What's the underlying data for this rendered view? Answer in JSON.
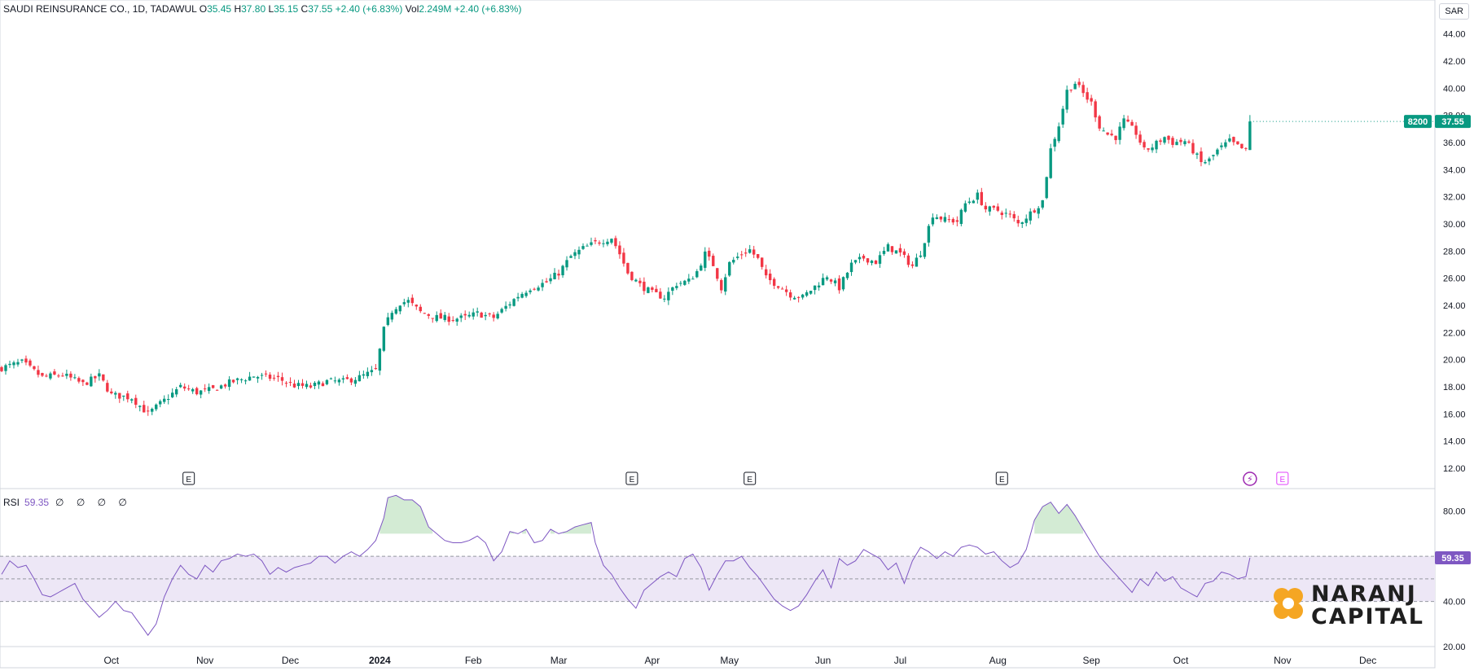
{
  "header": {
    "symbol": "SAUDI REINSURANCE CO., 1D, TADAWUL",
    "open_label": "O",
    "open": "35.45",
    "high_label": "H",
    "high": "37.80",
    "low_label": "L",
    "low": "35.15",
    "close_label": "C",
    "close": "37.55",
    "change": "+2.40 (+6.83%)",
    "vol_label": "Vol",
    "vol": "2.249M",
    "vol_change": "+2.40 (+6.83%)"
  },
  "currency": "SAR",
  "price_tags": {
    "code": "8200",
    "last": "37.55"
  },
  "rsi_legend": {
    "label": "RSI",
    "value": "59.35",
    "extra": "∅ ∅ ∅ ∅"
  },
  "brand": {
    "line1": "NARANJ",
    "line2": "CAPITAL"
  },
  "colors": {
    "up": "#089981",
    "down": "#f23645",
    "rsi": "#7e57c2",
    "band": "#ede7f6",
    "accent": "#f5a623"
  },
  "chart_data": [
    {
      "type": "candlestick",
      "title": "SAUDI REINSURANCE CO., 1D, TADAWUL",
      "ylabel": "SAR",
      "ylim": [
        10.5,
        46.5
      ],
      "yticks": [
        12,
        14,
        16,
        18,
        20,
        22,
        24,
        26,
        28,
        30,
        32,
        34,
        36,
        38,
        40,
        42,
        44
      ],
      "x_labels": [
        {
          "i": 27,
          "label": "Oct"
        },
        {
          "i": 50,
          "label": "Nov"
        },
        {
          "i": 71,
          "label": "Dec"
        },
        {
          "i": 93,
          "label": "2024"
        },
        {
          "i": 116,
          "label": "Feb"
        },
        {
          "i": 137,
          "label": "Mar"
        },
        {
          "i": 160,
          "label": "Apr"
        },
        {
          "i": 179,
          "label": "May"
        },
        {
          "i": 202,
          "label": "Jun"
        },
        {
          "i": 221,
          "label": "Jul"
        },
        {
          "i": 245,
          "label": "Aug"
        },
        {
          "i": 268,
          "label": "Sep"
        },
        {
          "i": 290,
          "label": "Oct"
        },
        {
          "i": 315,
          "label": "Nov"
        },
        {
          "i": 336,
          "label": "Dec"
        }
      ],
      "events": [
        {
          "i": 46,
          "label": "E"
        },
        {
          "i": 155,
          "label": "E"
        },
        {
          "i": 184,
          "label": "E"
        },
        {
          "i": 246,
          "label": "E"
        },
        {
          "i": 307,
          "label": "⚡"
        },
        {
          "i": 315,
          "label": "E"
        }
      ],
      "close_anchors": [
        [
          0,
          19.4
        ],
        [
          5,
          19.8
        ],
        [
          10,
          18.7
        ],
        [
          15,
          18.9
        ],
        [
          20,
          18.2
        ],
        [
          24,
          18.8
        ],
        [
          27,
          17.4
        ],
        [
          32,
          17.2
        ],
        [
          36,
          16.0
        ],
        [
          40,
          17.0
        ],
        [
          44,
          18.0
        ],
        [
          48,
          17.6
        ],
        [
          52,
          17.8
        ],
        [
          56,
          18.3
        ],
        [
          62,
          18.8
        ],
        [
          68,
          18.6
        ],
        [
          72,
          18.1
        ],
        [
          76,
          18.0
        ],
        [
          80,
          18.4
        ],
        [
          84,
          18.4
        ],
        [
          88,
          18.7
        ],
        [
          92,
          19.2
        ],
        [
          94,
          22.2
        ],
        [
          96,
          23.6
        ],
        [
          98,
          24.2
        ],
        [
          100,
          24.3
        ],
        [
          103,
          23.5
        ],
        [
          107,
          23.1
        ],
        [
          111,
          23.0
        ],
        [
          114,
          23.1
        ],
        [
          117,
          23.4
        ],
        [
          121,
          23.1
        ],
        [
          124,
          23.9
        ],
        [
          127,
          24.7
        ],
        [
          130,
          25.3
        ],
        [
          134,
          25.7
        ],
        [
          137,
          26.4
        ],
        [
          140,
          27.6
        ],
        [
          143,
          28.2
        ],
        [
          146,
          28.6
        ],
        [
          150,
          29.0
        ],
        [
          152,
          27.8
        ],
        [
          154,
          26.4
        ],
        [
          157,
          25.5
        ],
        [
          160,
          24.9
        ],
        [
          163,
          24.6
        ],
        [
          166,
          25.6
        ],
        [
          169,
          25.8
        ],
        [
          171,
          26.5
        ],
        [
          173,
          27.8
        ],
        [
          175,
          27.0
        ],
        [
          177,
          25.3
        ],
        [
          179,
          27.1
        ],
        [
          182,
          27.8
        ],
        [
          184,
          28.1
        ],
        [
          186,
          27.4
        ],
        [
          188,
          26.0
        ],
        [
          191,
          25.5
        ],
        [
          194,
          24.8
        ],
        [
          197,
          24.6
        ],
        [
          200,
          25.4
        ],
        [
          203,
          26.2
        ],
        [
          206,
          25.3
        ],
        [
          209,
          27.0
        ],
        [
          212,
          27.5
        ],
        [
          215,
          27.2
        ],
        [
          218,
          28.3
        ],
        [
          221,
          27.8
        ],
        [
          224,
          26.9
        ],
        [
          226,
          27.9
        ],
        [
          229,
          30.7
        ],
        [
          232,
          30.3
        ],
        [
          235,
          30.2
        ],
        [
          237,
          31.5
        ],
        [
          240,
          32.1
        ],
        [
          242,
          31.1
        ],
        [
          245,
          31.0
        ],
        [
          248,
          30.6
        ],
        [
          250,
          30.0
        ],
        [
          253,
          30.8
        ],
        [
          256,
          31.7
        ],
        [
          258,
          35.5
        ],
        [
          260,
          37.3
        ],
        [
          262,
          39.8
        ],
        [
          264,
          40.4
        ],
        [
          266,
          39.6
        ],
        [
          268,
          38.9
        ],
        [
          270,
          37.2
        ],
        [
          272,
          36.6
        ],
        [
          274,
          36.4
        ],
        [
          276,
          37.6
        ],
        [
          279,
          36.7
        ],
        [
          281,
          35.4
        ],
        [
          283,
          35.7
        ],
        [
          286,
          36.4
        ],
        [
          288,
          36.0
        ],
        [
          291,
          36.1
        ],
        [
          293,
          35.4
        ],
        [
          295,
          34.5
        ],
        [
          297,
          34.7
        ],
        [
          299,
          35.4
        ],
        [
          302,
          36.1
        ],
        [
          304,
          35.7
        ],
        [
          306,
          35.4
        ],
        [
          307,
          37.55
        ]
      ],
      "last_close": 37.55
    },
    {
      "type": "line",
      "title": "RSI",
      "last_value": 59.35,
      "ylim": [
        20,
        90
      ],
      "yticks": [
        20,
        40,
        60,
        80
      ],
      "bands": {
        "upper": 60,
        "middle": 50,
        "lower": 40,
        "overbought": 70
      },
      "anchors": [
        [
          0,
          52
        ],
        [
          2,
          58
        ],
        [
          4,
          55
        ],
        [
          6,
          56
        ],
        [
          8,
          50
        ],
        [
          10,
          43
        ],
        [
          12,
          42
        ],
        [
          14,
          44
        ],
        [
          16,
          46
        ],
        [
          18,
          48
        ],
        [
          20,
          41
        ],
        [
          22,
          37
        ],
        [
          24,
          33
        ],
        [
          26,
          36
        ],
        [
          28,
          40
        ],
        [
          30,
          36
        ],
        [
          32,
          35
        ],
        [
          34,
          30
        ],
        [
          36,
          25
        ],
        [
          38,
          30
        ],
        [
          40,
          42
        ],
        [
          42,
          50
        ],
        [
          44,
          56
        ],
        [
          46,
          52
        ],
        [
          48,
          50
        ],
        [
          50,
          56
        ],
        [
          52,
          53
        ],
        [
          54,
          58
        ],
        [
          56,
          59
        ],
        [
          58,
          61
        ],
        [
          60,
          60
        ],
        [
          62,
          61
        ],
        [
          64,
          58
        ],
        [
          66,
          52
        ],
        [
          68,
          55
        ],
        [
          70,
          53
        ],
        [
          72,
          55
        ],
        [
          74,
          56
        ],
        [
          76,
          57
        ],
        [
          78,
          60
        ],
        [
          80,
          60
        ],
        [
          82,
          57
        ],
        [
          84,
          60
        ],
        [
          86,
          62
        ],
        [
          88,
          60
        ],
        [
          90,
          63
        ],
        [
          92,
          67
        ],
        [
          94,
          77
        ],
        [
          95,
          86
        ],
        [
          97,
          87
        ],
        [
          99,
          85
        ],
        [
          101,
          85
        ],
        [
          103,
          82
        ],
        [
          105,
          73
        ],
        [
          107,
          70
        ],
        [
          109,
          67
        ],
        [
          111,
          66
        ],
        [
          113,
          66
        ],
        [
          115,
          67
        ],
        [
          117,
          69
        ],
        [
          119,
          66
        ],
        [
          121,
          58
        ],
        [
          123,
          62
        ],
        [
          125,
          71
        ],
        [
          127,
          70
        ],
        [
          129,
          72
        ],
        [
          131,
          66
        ],
        [
          133,
          67
        ],
        [
          135,
          72
        ],
        [
          137,
          70
        ],
        [
          139,
          71
        ],
        [
          141,
          73
        ],
        [
          143,
          74
        ],
        [
          145,
          75
        ],
        [
          146,
          66
        ],
        [
          148,
          56
        ],
        [
          150,
          52
        ],
        [
          152,
          46
        ],
        [
          154,
          41
        ],
        [
          156,
          37
        ],
        [
          158,
          45
        ],
        [
          160,
          48
        ],
        [
          162,
          51
        ],
        [
          164,
          53
        ],
        [
          166,
          51
        ],
        [
          168,
          59
        ],
        [
          170,
          61
        ],
        [
          172,
          55
        ],
        [
          174,
          45
        ],
        [
          176,
          52
        ],
        [
          178,
          58
        ],
        [
          180,
          58
        ],
        [
          182,
          60
        ],
        [
          184,
          55
        ],
        [
          186,
          51
        ],
        [
          188,
          46
        ],
        [
          190,
          41
        ],
        [
          192,
          38
        ],
        [
          194,
          36
        ],
        [
          196,
          38
        ],
        [
          198,
          43
        ],
        [
          200,
          49
        ],
        [
          202,
          54
        ],
        [
          204,
          46
        ],
        [
          206,
          59
        ],
        [
          208,
          56
        ],
        [
          210,
          58
        ],
        [
          212,
          63
        ],
        [
          214,
          61
        ],
        [
          216,
          59
        ],
        [
          218,
          54
        ],
        [
          220,
          57
        ],
        [
          222,
          48
        ],
        [
          224,
          58
        ],
        [
          226,
          64
        ],
        [
          228,
          62
        ],
        [
          230,
          59
        ],
        [
          232,
          62
        ],
        [
          234,
          60
        ],
        [
          236,
          64
        ],
        [
          238,
          65
        ],
        [
          240,
          64
        ],
        [
          242,
          61
        ],
        [
          244,
          62
        ],
        [
          246,
          58
        ],
        [
          248,
          55
        ],
        [
          250,
          57
        ],
        [
          252,
          63
        ],
        [
          254,
          76
        ],
        [
          256,
          82
        ],
        [
          258,
          84
        ],
        [
          260,
          79
        ],
        [
          262,
          83
        ],
        [
          264,
          78
        ],
        [
          266,
          72
        ],
        [
          268,
          66
        ],
        [
          270,
          60
        ],
        [
          272,
          56
        ],
        [
          274,
          52
        ],
        [
          276,
          48
        ],
        [
          278,
          44
        ],
        [
          280,
          50
        ],
        [
          282,
          47
        ],
        [
          284,
          53
        ],
        [
          286,
          49
        ],
        [
          288,
          51
        ],
        [
          290,
          46
        ],
        [
          292,
          44
        ],
        [
          294,
          42
        ],
        [
          296,
          48
        ],
        [
          298,
          49
        ],
        [
          300,
          53
        ],
        [
          302,
          52
        ],
        [
          304,
          50
        ],
        [
          306,
          51
        ],
        [
          307,
          59.35
        ]
      ]
    }
  ]
}
